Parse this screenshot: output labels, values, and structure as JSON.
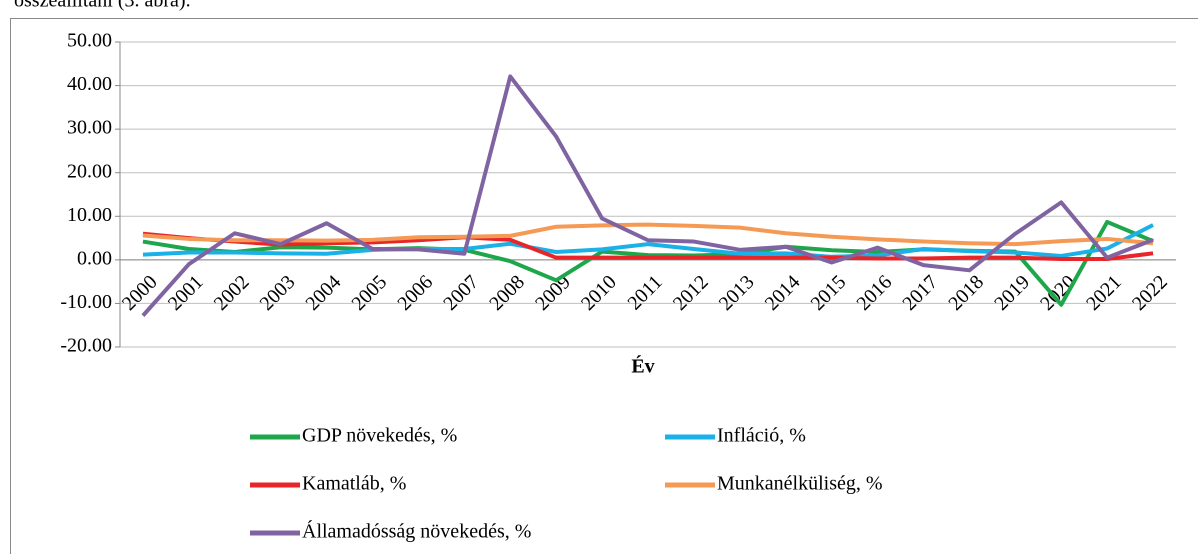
{
  "caption_text": "összeállítani (3. ábra).",
  "chart_data": {
    "type": "line",
    "x_label": "Év",
    "categories": [
      "2000",
      "2001",
      "2002",
      "2003",
      "2004",
      "2005",
      "2006",
      "2007",
      "2008",
      "2009",
      "2010",
      "2011",
      "2012",
      "2013",
      "2014",
      "2015",
      "2016",
      "2017",
      "2018",
      "2019",
      "2020",
      "2021",
      "2022"
    ],
    "ylim": [
      -20,
      50
    ],
    "yticks": [
      {
        "value": -20,
        "label": "-20.00"
      },
      {
        "value": -10,
        "label": "-10.00"
      },
      {
        "value": 0,
        "label": "0.00"
      },
      {
        "value": 10,
        "label": "10.00"
      },
      {
        "value": 20,
        "label": "20.00"
      },
      {
        "value": 30,
        "label": "30.00"
      },
      {
        "value": 40,
        "label": "40.00"
      },
      {
        "value": 50,
        "label": "50.00"
      }
    ],
    "grid": true,
    "legend": "bottom",
    "series": [
      {
        "name": "GDP növekedés, %",
        "color": "#1ea64b",
        "values": [
          4.2,
          2.5,
          1.8,
          2.9,
          2.8,
          2.4,
          2.7,
          2.3,
          -0.3,
          -4.7,
          1.9,
          1.1,
          1.0,
          1.3,
          3.0,
          2.2,
          1.8,
          2.4,
          2.1,
          1.9,
          -10.3,
          8.7,
          4.3
        ]
      },
      {
        "name": "Infláció, %",
        "color": "#1ab0e8",
        "values": [
          1.2,
          1.7,
          1.7,
          1.5,
          1.4,
          2.3,
          2.5,
          2.5,
          3.7,
          1.8,
          2.4,
          3.6,
          2.5,
          1.4,
          1.5,
          0.7,
          1.0,
          2.5,
          2.0,
          1.7,
          0.9,
          2.6,
          8.0
        ]
      },
      {
        "name": "Kamatláb, %",
        "color": "#e8262a",
        "values": [
          6.0,
          5.0,
          4.2,
          3.5,
          3.8,
          4.0,
          4.5,
          5.2,
          4.6,
          0.5,
          0.5,
          0.5,
          0.5,
          0.5,
          0.5,
          0.5,
          0.3,
          0.3,
          0.5,
          0.5,
          0.2,
          0.2,
          1.5
        ]
      },
      {
        "name": "Munkanélküliség, %",
        "color": "#f59a55",
        "values": [
          5.6,
          4.8,
          4.5,
          4.5,
          4.4,
          4.6,
          5.2,
          5.3,
          5.5,
          7.6,
          7.9,
          8.1,
          7.8,
          7.4,
          6.1,
          5.3,
          4.7,
          4.2,
          3.8,
          3.6,
          4.3,
          4.8,
          3.8
        ]
      },
      {
        "name": "Államadósság növekedés, %",
        "color": "#8064a2",
        "values": [
          -12.8,
          -1.0,
          6.1,
          3.6,
          8.4,
          2.5,
          2.4,
          1.4,
          42.1,
          28.3,
          9.5,
          4.5,
          4.2,
          2.3,
          3.0,
          -0.6,
          2.8,
          -1.2,
          -2.4,
          6.0,
          13.2,
          0.5,
          4.6
        ]
      }
    ]
  }
}
